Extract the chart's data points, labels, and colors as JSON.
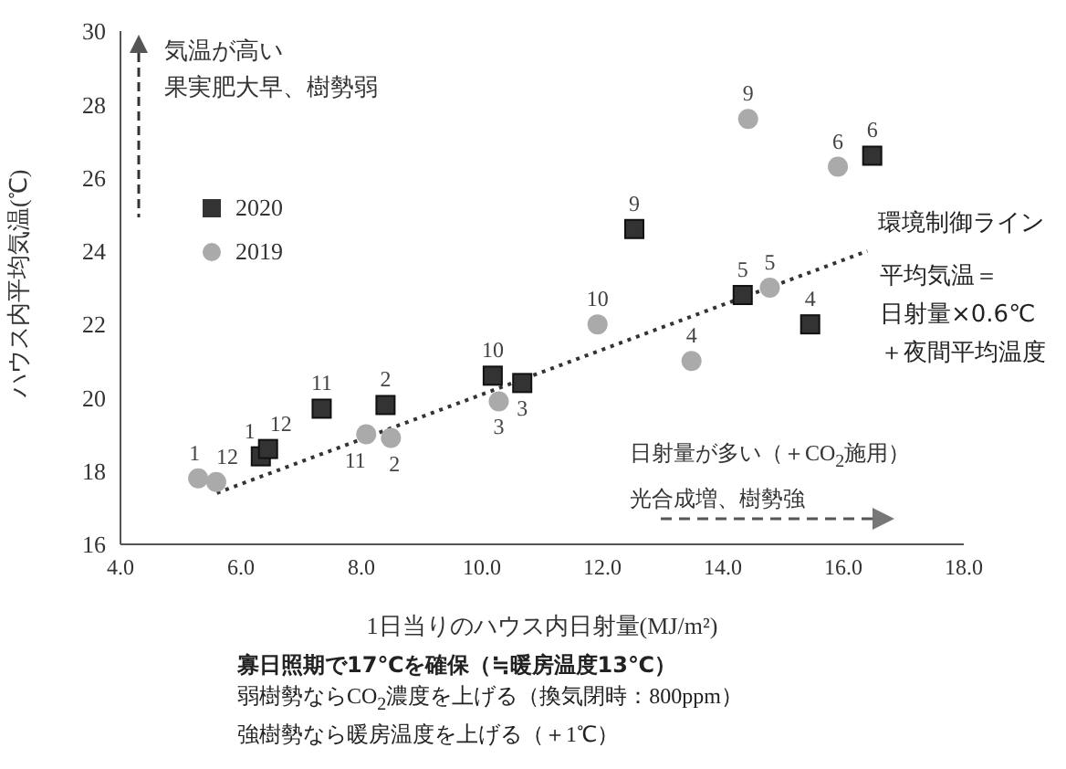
{
  "chart_data": {
    "type": "scatter",
    "xlabel": "1日当りのハウス内日射量(MJ/m²)",
    "ylabel": "ハウス内平均気温(℃)",
    "xlim": [
      4,
      18
    ],
    "xticks": [
      {
        "value": 4,
        "label": "4.0"
      },
      {
        "value": 6,
        "label": "6.0"
      },
      {
        "value": 8,
        "label": "8.0"
      },
      {
        "value": 10,
        "label": "10.0"
      },
      {
        "value": 12,
        "label": "12.0"
      },
      {
        "value": 14,
        "label": "14.0"
      },
      {
        "value": 16,
        "label": "16.0"
      },
      {
        "value": 18,
        "label": "18.0"
      }
    ],
    "ylim": [
      16,
      30
    ],
    "yticks": [
      16,
      18,
      20,
      22,
      24,
      26,
      28,
      30
    ],
    "legend": "top left",
    "series": [
      {
        "name": "2020",
        "marker": "square",
        "color": "#333333",
        "x": [
          6.33,
          6.45,
          7.34,
          8.4,
          10.18,
          10.67,
          12.53,
          14.33,
          15.45,
          16.48
        ],
        "values": [
          18.4,
          18.6,
          19.7,
          19.8,
          20.6,
          20.4,
          24.6,
          22.8,
          22.0,
          26.6
        ]
      },
      {
        "name": "2019",
        "marker": "circle",
        "color": "#aaaaaa",
        "x": [
          5.29,
          5.59,
          8.08,
          8.49,
          10.28,
          11.92,
          13.48,
          14.78,
          14.42,
          15.91
        ],
        "values": [
          17.8,
          17.7,
          19.0,
          18.9,
          19.9,
          22.0,
          21.0,
          23.0,
          27.6,
          26.3
        ]
      },
      {
        "name": "環境制御ライン",
        "type": "line",
        "line_style": "dotted",
        "marker": "none",
        "color": "#333333",
        "x": [
          5.6,
          16.4
        ],
        "values": [
          17.4,
          24.0
        ]
      }
    ],
    "annotations": [
      "気温が高い",
      "果実肥大早、樹勢弱",
      "平均気温＝",
      "日射量×0.6℃",
      "＋夜間平均温度",
      "日射量が多い（＋CO$_{2}$施用）",
      "光合成増、樹勢強",
      "寡日照期で17℃を確保（≒暖房温度13℃）",
      "弱樹勢ならCO$_{2}$濃度を上げる（換気閉時：800ppm）",
      "強樹勢なら暖房温度を上げる（＋1℃）",
      {
        "text": "1",
        "x": 6.33,
        "y": 18.4
      },
      {
        "text": "12",
        "x": 6.45,
        "y": 18.6
      },
      {
        "text": "11",
        "x": 7.34,
        "y": 19.7
      },
      {
        "text": "2",
        "x": 8.4,
        "y": 19.8
      },
      {
        "text": "10",
        "x": 10.18,
        "y": 20.6
      },
      {
        "text": "3",
        "x": 10.67,
        "y": 20.4
      },
      {
        "text": "9",
        "x": 12.53,
        "y": 24.6
      },
      {
        "text": "5",
        "x": 14.33,
        "y": 22.8
      },
      {
        "text": "4",
        "x": 15.45,
        "y": 22.0
      },
      {
        "text": "6",
        "x": 16.48,
        "y": 26.6
      },
      {
        "text": "1",
        "x": 5.29,
        "y": 17.8
      },
      {
        "text": "12",
        "x": 5.59,
        "y": 17.7
      },
      {
        "text": "11",
        "x": 8.08,
        "y": 19.0
      },
      {
        "text": "2",
        "x": 8.49,
        "y": 18.9
      },
      {
        "text": "3",
        "x": 10.28,
        "y": 19.9
      },
      {
        "text": "10",
        "x": 11.92,
        "y": 22.0
      },
      {
        "text": "4",
        "x": 13.48,
        "y": 21.0
      },
      {
        "text": "5",
        "x": 14.78,
        "y": 23.0
      },
      {
        "text": "9",
        "x": 14.42,
        "y": 27.6
      },
      {
        "text": "6",
        "x": 15.91,
        "y": 26.3
      }
    ]
  }
}
